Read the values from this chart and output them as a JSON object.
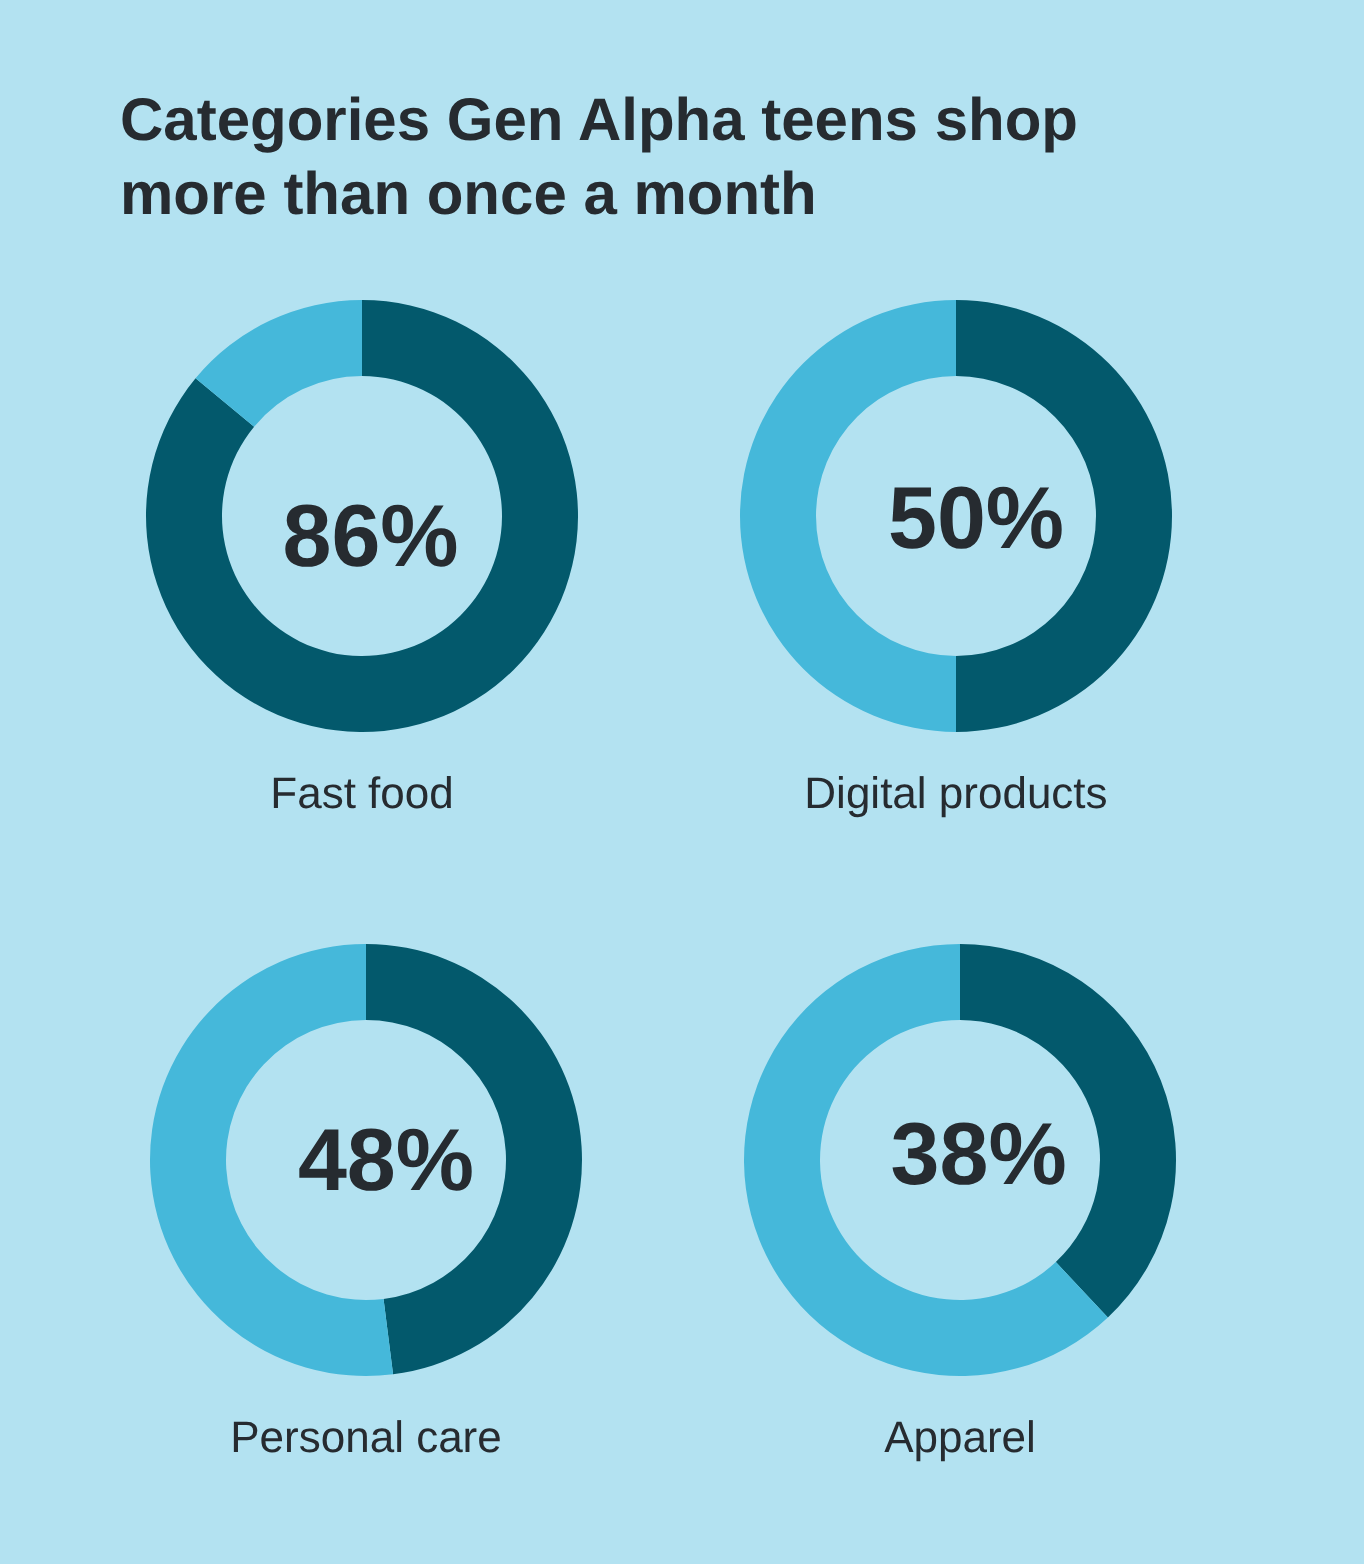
{
  "chart_data": [
    {
      "type": "other",
      "title": "Categories Gen Alpha teens shop more than once a month"
    },
    {
      "type": "donut",
      "title": "Fast food",
      "categories": [
        null,
        null
      ],
      "values": [
        86,
        14
      ],
      "colors": [
        "#03596c",
        "#45b8da"
      ],
      "value_labels": [
        "86%",
        null
      ]
    },
    {
      "type": "donut",
      "title": "Digital products",
      "categories": [
        null,
        null
      ],
      "values": [
        50,
        50
      ],
      "colors": [
        "#03596c",
        "#45b8da"
      ],
      "value_labels": [
        "50%",
        null
      ]
    },
    {
      "type": "donut",
      "title": "Personal care",
      "categories": [
        null,
        null
      ],
      "values": [
        48,
        52
      ],
      "colors": [
        "#03596c",
        "#45b8da"
      ],
      "value_labels": [
        "48%",
        null
      ]
    },
    {
      "type": "donut",
      "title": "Apparel",
      "categories": [
        null,
        null
      ],
      "values": [
        38,
        62
      ],
      "colors": [
        "#03596c",
        "#45b8da"
      ],
      "value_labels": [
        "38%",
        null
      ]
    }
  ]
}
